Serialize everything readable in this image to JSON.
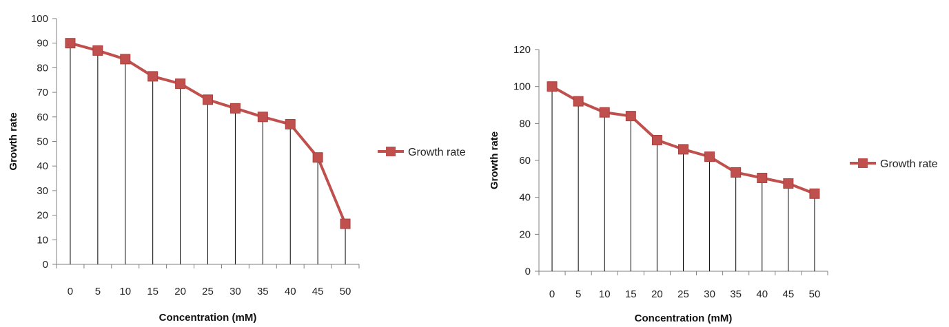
{
  "chart_data": [
    {
      "type": "line",
      "x": [
        0,
        5,
        10,
        15,
        20,
        25,
        30,
        35,
        40,
        45,
        50
      ],
      "categories": [
        "0",
        "5",
        "10",
        "15",
        "20",
        "25",
        "30",
        "35",
        "40",
        "45",
        "50"
      ],
      "series": [
        {
          "name": "Growth rate",
          "values": [
            90,
            87,
            83.5,
            76.5,
            73.5,
            67,
            63.5,
            60,
            57,
            43.5,
            16.5
          ],
          "color": "#c0504d"
        }
      ],
      "xlabel": "Concentration (mM)",
      "ylabel": "Growth rate",
      "ylim": [
        0,
        100
      ],
      "yticks": [
        0,
        10,
        20,
        30,
        40,
        50,
        60,
        70,
        80,
        90,
        100
      ],
      "drop_lines": true,
      "legend": "right",
      "grid": false
    },
    {
      "type": "line",
      "x": [
        0,
        5,
        10,
        15,
        20,
        25,
        30,
        35,
        40,
        45,
        50
      ],
      "categories": [
        "0",
        "5",
        "10",
        "15",
        "20",
        "25",
        "30",
        "35",
        "40",
        "45",
        "50"
      ],
      "series": [
        {
          "name": "Growth rate",
          "values": [
            100,
            92,
            86,
            84,
            71,
            66,
            62,
            53.5,
            50.5,
            47.5,
            42
          ],
          "color": "#c0504d"
        }
      ],
      "xlabel": "Concentration (mM)",
      "ylabel": "Growth rate",
      "ylim": [
        0,
        120
      ],
      "yticks": [
        0,
        20,
        40,
        60,
        80,
        100,
        120
      ],
      "drop_lines": true,
      "legend": "right",
      "grid": false
    }
  ]
}
